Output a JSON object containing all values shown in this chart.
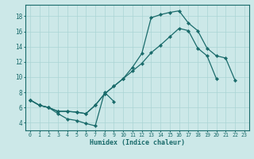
{
  "xlabel": "Humidex (Indice chaleur)",
  "background_color": "#cce8e8",
  "line_color": "#1a6b6b",
  "grid_color": "#aad4d4",
  "xlim": [
    -0.5,
    23.5
  ],
  "ylim": [
    3.0,
    19.5
  ],
  "yticks": [
    4,
    6,
    8,
    10,
    12,
    14,
    16,
    18
  ],
  "xticks": [
    0,
    1,
    2,
    3,
    4,
    5,
    6,
    7,
    8,
    9,
    10,
    11,
    12,
    13,
    14,
    15,
    16,
    17,
    18,
    19,
    20,
    21,
    22,
    23
  ],
  "curve1": {
    "x": [
      0,
      1,
      2,
      3,
      4,
      5,
      6,
      7,
      8,
      9
    ],
    "y": [
      7.0,
      6.3,
      6.0,
      5.2,
      4.5,
      4.3,
      3.9,
      3.6,
      8.0,
      6.8
    ]
  },
  "curve2": {
    "x": [
      0,
      1,
      2,
      3,
      4,
      5,
      6,
      7,
      8,
      9,
      10,
      11,
      12,
      13,
      14,
      15,
      16,
      17,
      18,
      19,
      20
    ],
    "y": [
      7.0,
      6.3,
      6.0,
      5.5,
      5.5,
      5.4,
      5.2,
      6.3,
      7.8,
      8.8,
      9.8,
      10.8,
      11.8,
      13.2,
      14.2,
      15.3,
      16.4,
      16.1,
      13.8,
      12.8,
      9.8
    ]
  },
  "curve3": {
    "x": [
      0,
      1,
      2,
      3,
      4,
      5,
      6,
      7,
      8,
      9,
      10,
      11,
      12,
      13,
      14,
      15,
      16,
      17,
      18,
      19,
      20,
      21,
      22
    ],
    "y": [
      7.0,
      6.3,
      6.0,
      5.5,
      5.5,
      5.4,
      5.2,
      6.3,
      7.8,
      8.8,
      9.8,
      11.3,
      13.1,
      17.8,
      18.2,
      18.5,
      18.7,
      17.1,
      16.1,
      13.8,
      12.8,
      12.5,
      9.6
    ]
  }
}
